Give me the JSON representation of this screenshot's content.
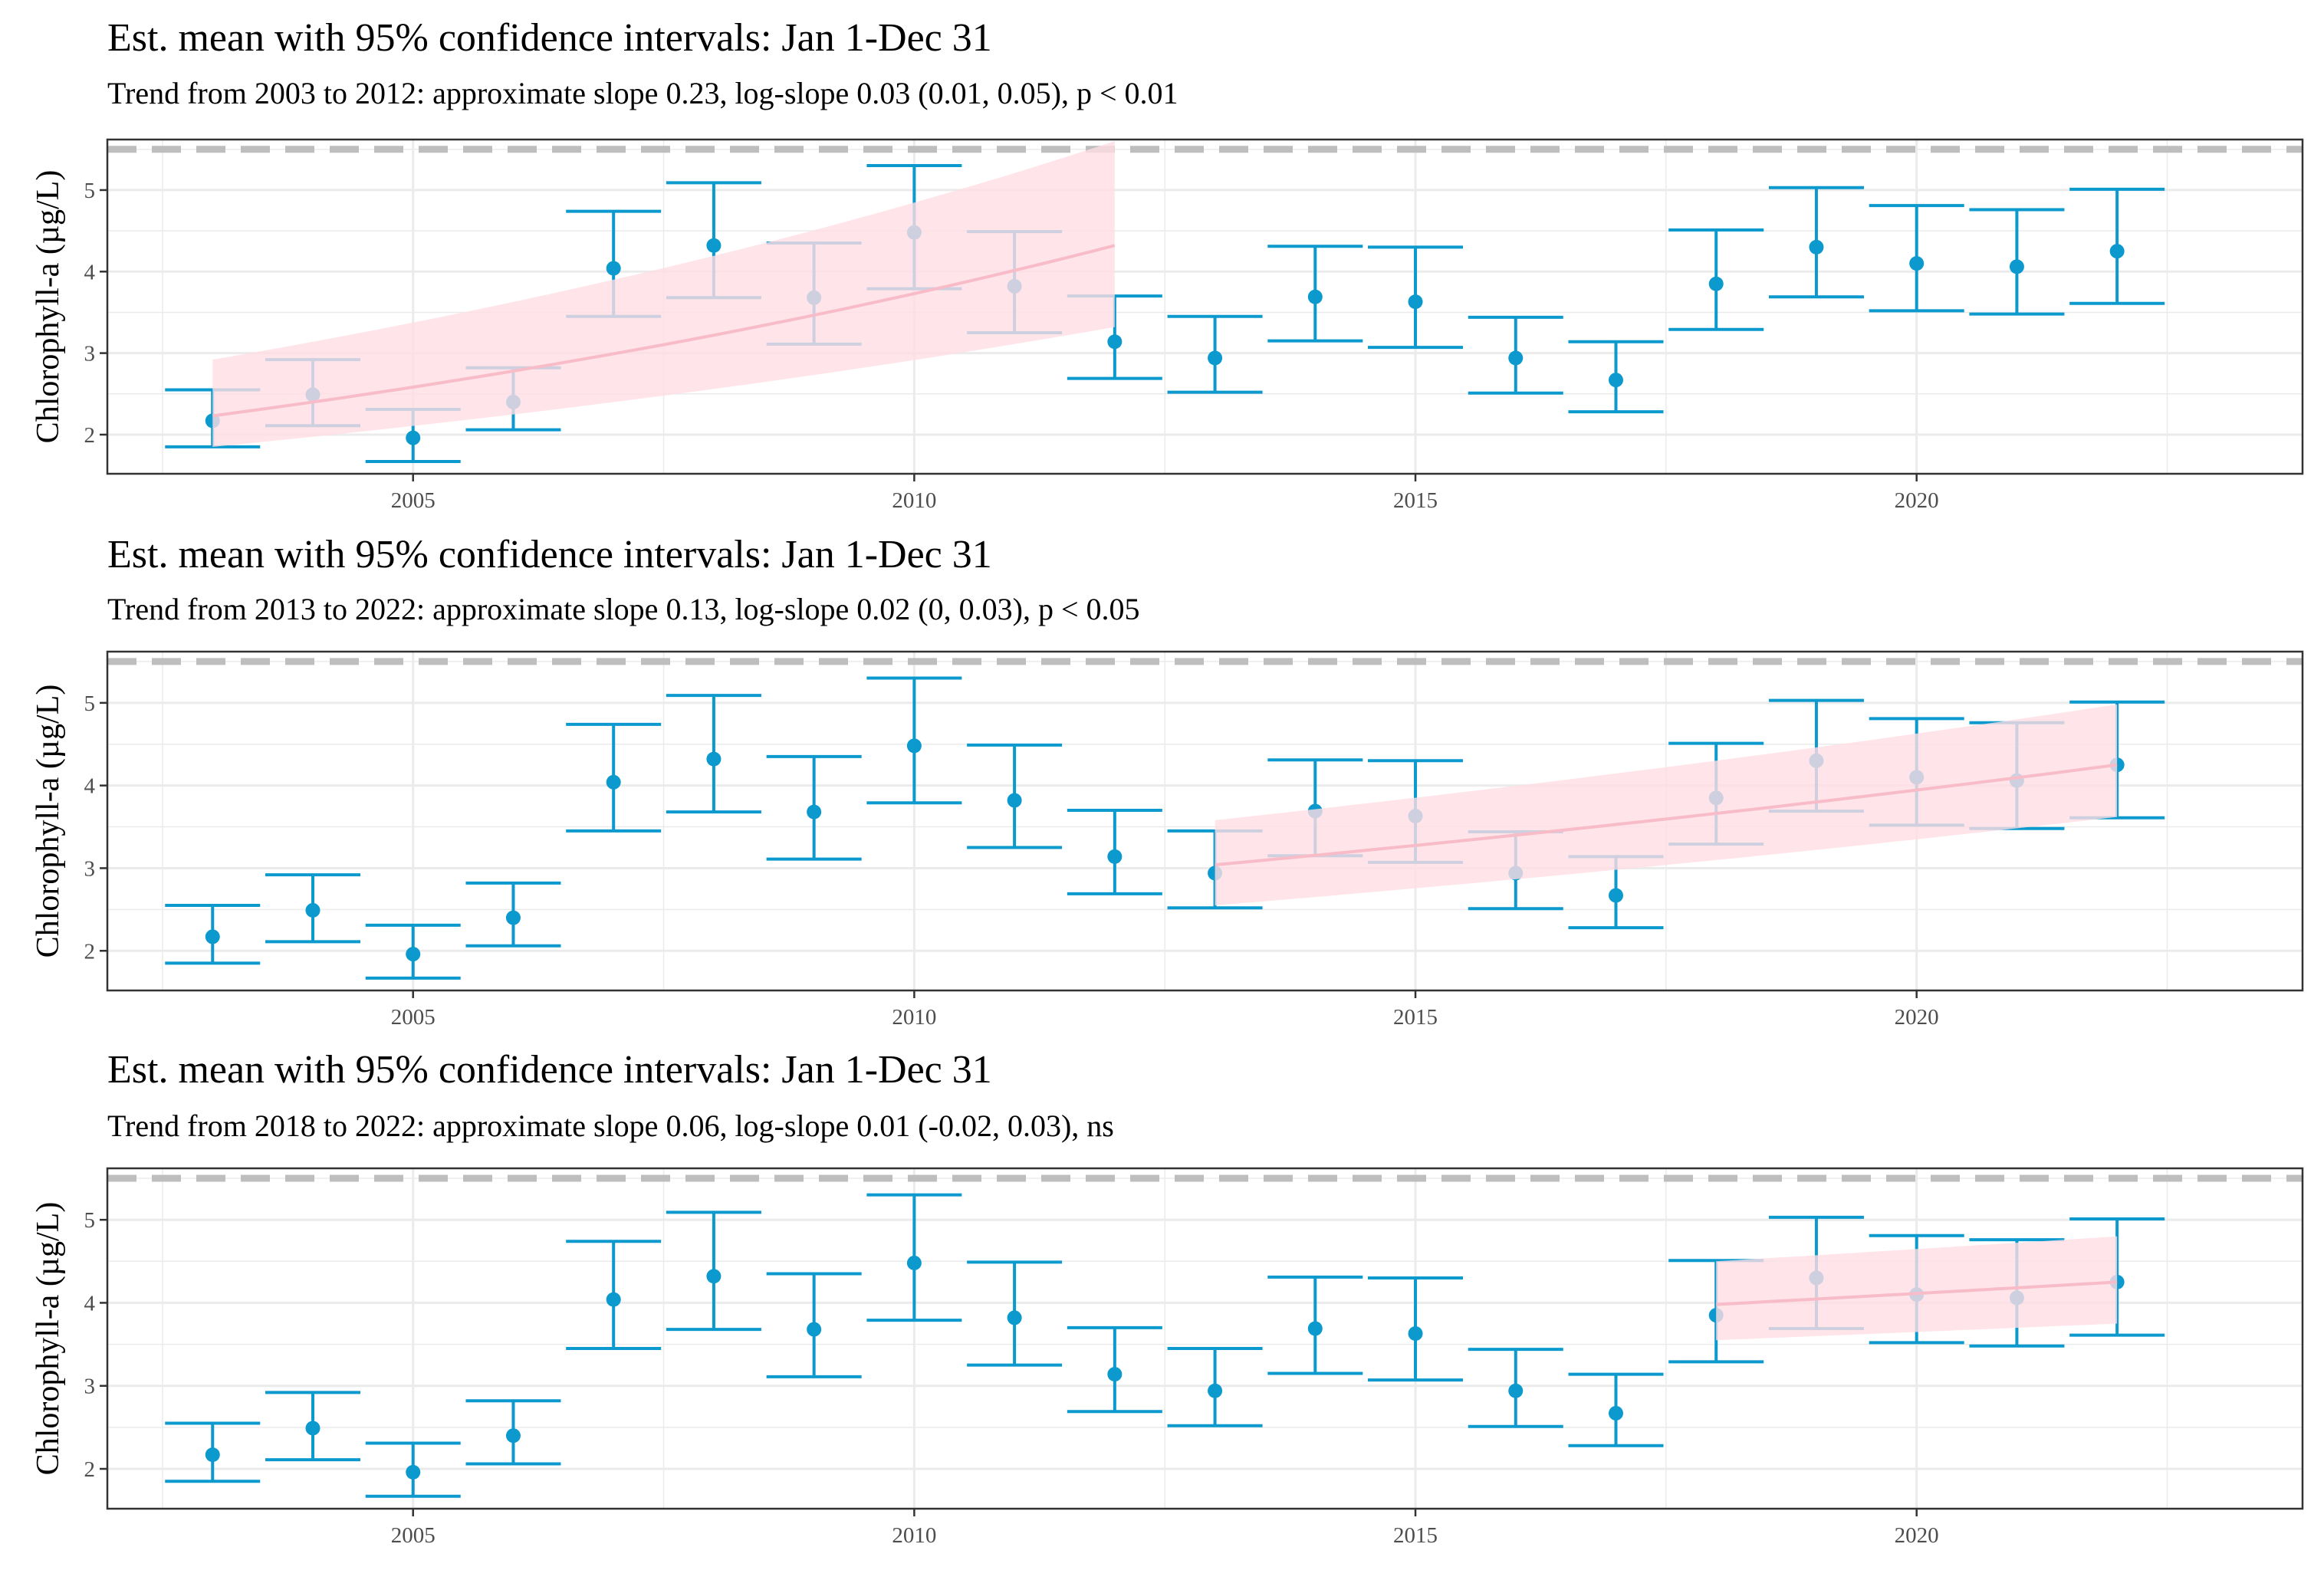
{
  "chart_data": [
    {
      "type": "scatter",
      "title": "Est. mean with 95% confidence intervals: Jan 1-Dec 31",
      "subtitle": "Trend from 2003 to 2012: approximate slope 0.23, log-slope 0.03 (0.01, 0.05), p < 0.01",
      "xlabel": "",
      "ylabel": "Chlorophyll-a (µg/L)",
      "xlim": [
        2001.95,
        2023.85
      ],
      "ylim": [
        1.52,
        5.62
      ],
      "x_ticks": [
        2005,
        2010,
        2015,
        2020
      ],
      "y_ticks": [
        2,
        3,
        4,
        5
      ],
      "reference_line": 5.5,
      "trend": {
        "x": [
          2003,
          2012
        ],
        "y_start": 2.23,
        "y_end": 4.32,
        "lower_start": 1.85,
        "lower_end": 3.32,
        "upper_start": 2.92,
        "upper_end": 5.6
      }
    },
    {
      "type": "scatter",
      "title": "Est. mean with 95% confidence intervals: Jan 1-Dec 31",
      "subtitle": "Trend from 2013 to 2022: approximate slope 0.13, log-slope 0.02 (0, 0.03), p < 0.05",
      "xlabel": "",
      "ylabel": "Chlorophyll-a (µg/L)",
      "xlim": [
        2001.95,
        2023.85
      ],
      "ylim": [
        1.52,
        5.62
      ],
      "x_ticks": [
        2005,
        2010,
        2015,
        2020
      ],
      "y_ticks": [
        2,
        3,
        4,
        5
      ],
      "reference_line": 5.5,
      "trend": {
        "x": [
          2013,
          2022
        ],
        "y_start": 3.04,
        "y_end": 4.25,
        "lower_start": 2.55,
        "lower_end": 3.62,
        "upper_start": 3.58,
        "upper_end": 4.98
      }
    },
    {
      "type": "scatter",
      "title": "Est. mean with 95% confidence intervals: Jan 1-Dec 31",
      "subtitle": "Trend from 2018 to 2022: approximate slope 0.06, log-slope 0.01 (-0.02, 0.03), ns",
      "xlabel": "",
      "ylabel": "Chlorophyll-a (µg/L)",
      "xlim": [
        2001.95,
        2023.85
      ],
      "ylim": [
        1.52,
        5.62
      ],
      "x_ticks": [
        2005,
        2010,
        2015,
        2020
      ],
      "y_ticks": [
        2,
        3,
        4,
        5
      ],
      "reference_line": 5.5,
      "trend": {
        "x": [
          2018,
          2022
        ],
        "y_start": 3.98,
        "y_end": 4.25,
        "lower_start": 3.55,
        "lower_end": 3.75,
        "upper_start": 4.5,
        "upper_end": 4.8
      }
    }
  ],
  "estimates": {
    "years": [
      2003,
      2004,
      2005,
      2006,
      2007,
      2008,
      2009,
      2010,
      2011,
      2012,
      2013,
      2014,
      2015,
      2016,
      2017,
      2018,
      2019,
      2020,
      2021,
      2022
    ],
    "mean": [
      2.17,
      2.49,
      1.96,
      2.4,
      4.04,
      4.32,
      3.68,
      4.48,
      3.82,
      3.14,
      2.94,
      3.69,
      3.63,
      2.94,
      2.67,
      3.85,
      4.3,
      4.1,
      4.06,
      4.25
    ],
    "lower": [
      1.85,
      2.11,
      1.67,
      2.06,
      3.45,
      3.68,
      3.11,
      3.79,
      3.25,
      2.69,
      2.52,
      3.15,
      3.07,
      2.51,
      2.28,
      3.29,
      3.69,
      3.52,
      3.48,
      3.61
    ],
    "upper": [
      2.55,
      2.92,
      2.31,
      2.82,
      4.74,
      5.09,
      4.35,
      5.3,
      4.49,
      3.7,
      3.45,
      4.31,
      4.3,
      3.44,
      3.14,
      4.51,
      5.03,
      4.81,
      4.76,
      5.01
    ]
  },
  "colors": {
    "series": "#0b99ce",
    "trend_line": "#f8bcc8",
    "trend_band": "#ffdde4",
    "reference_line": "#bebebe",
    "grid": "#ebebeb",
    "panel_border": "#333333"
  }
}
